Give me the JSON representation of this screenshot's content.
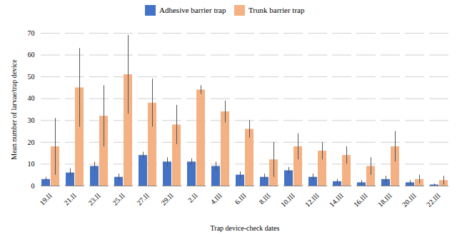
{
  "chart_data": {
    "type": "bar",
    "xlabel": "Trap device-check dates",
    "ylabel": "Mean number of larvae/trap device",
    "categories": [
      "19.II",
      "21.II",
      "23.II",
      "25.II",
      "27.II",
      "29.II",
      "2.II",
      "4.III",
      "6.III",
      "8.III",
      "10.III",
      "12.III",
      "14.III",
      "16.III",
      "18.III",
      "20.III",
      "22.III"
    ],
    "series": [
      {
        "name": "Adhesive barrier trap",
        "color": "#4472C4",
        "values": [
          3,
          6,
          9,
          4,
          14,
          11,
          11,
          9,
          5,
          4,
          7,
          4,
          2,
          1.5,
          3,
          1.5,
          0.5
        ],
        "errors": [
          1.0,
          2.0,
          2.0,
          1.5,
          1.5,
          2.0,
          1.5,
          2.0,
          1.5,
          1.5,
          1.5,
          1.5,
          1.0,
          1.0,
          1.5,
          1.0,
          0.5
        ]
      },
      {
        "name": "Trunk barrier trap",
        "color": "#F4B183",
        "values": [
          18,
          45,
          32,
          51,
          38,
          28,
          44,
          34,
          26,
          12,
          18,
          16,
          14,
          9,
          18,
          3,
          2.5
        ],
        "errors": [
          13,
          18,
          14,
          18,
          11,
          9,
          2,
          5,
          4,
          8,
          6,
          4,
          4,
          4,
          7,
          2,
          2
        ]
      }
    ],
    "ylim": [
      0,
      70
    ],
    "yticks": [
      0,
      10,
      20,
      30,
      40,
      50,
      60,
      70
    ],
    "grid": true,
    "legend": "top"
  }
}
